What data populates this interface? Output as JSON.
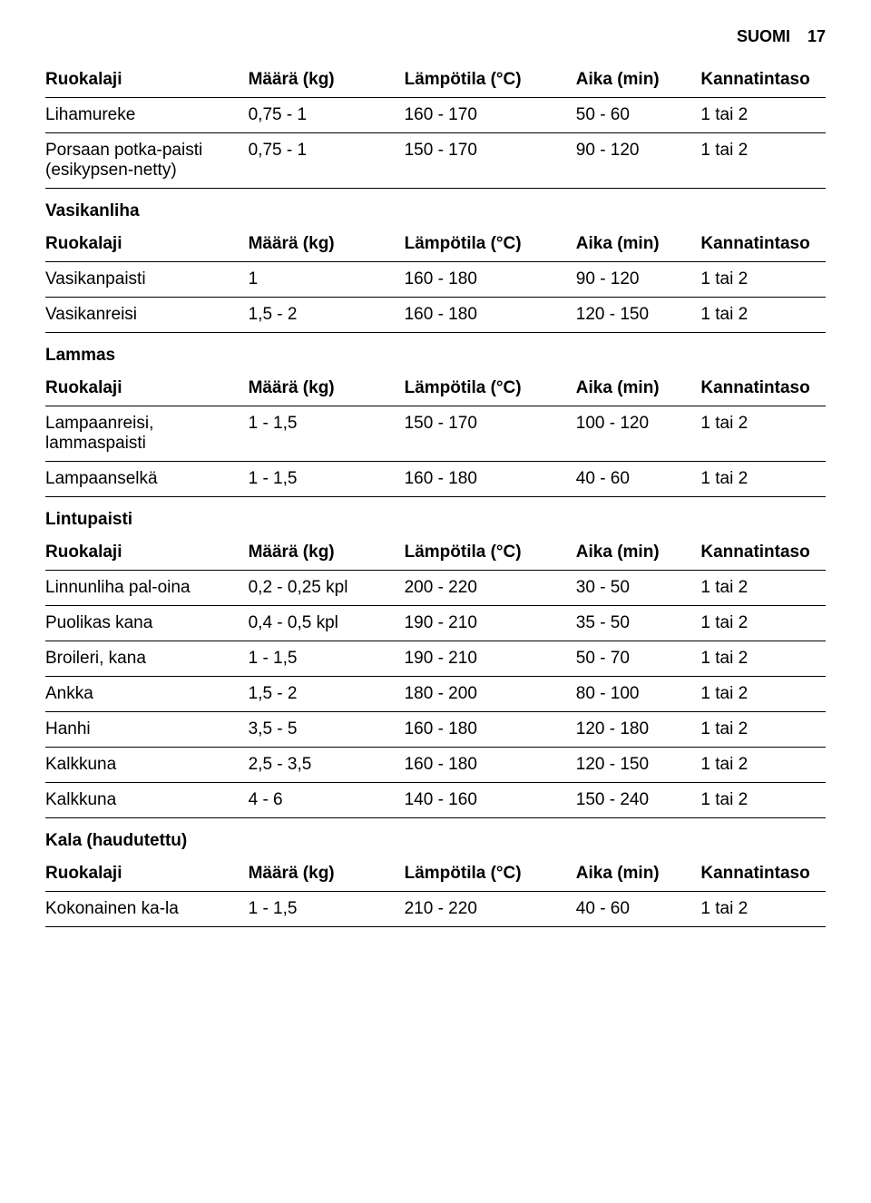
{
  "header": {
    "lang": "SUOMI",
    "page": "17"
  },
  "columns": {
    "ruokalaji": "Ruokalaji",
    "maara": "Määrä (kg)",
    "lampotila_br": "Lämpötila (°C)",
    "lampotila": "Lämpötila (°C)",
    "aika": "Aika (min)",
    "kannatintaso": "Kannatintaso"
  },
  "sections": {
    "top": {
      "rows": [
        {
          "ruokalaji": "Lihamureke",
          "maara": "0,75 - 1",
          "lampotila": "160 - 170",
          "aika": "50 - 60",
          "kannatintaso": "1 tai 2"
        },
        {
          "ruokalaji": "Porsaan potka-paisti (esikypsen-netty)",
          "maara": "0,75 - 1",
          "lampotila": "150 - 170",
          "aika": "90 - 120",
          "kannatintaso": "1 tai 2"
        }
      ]
    },
    "vasikanliha": {
      "title": "Vasikanliha",
      "rows": [
        {
          "ruokalaji": "Vasikanpaisti",
          "maara": "1",
          "lampotila": "160 - 180",
          "aika": "90 - 120",
          "kannatintaso": "1 tai 2"
        },
        {
          "ruokalaji": "Vasikanreisi",
          "maara": "1,5 - 2",
          "lampotila": "160 - 180",
          "aika": "120 - 150",
          "kannatintaso": "1 tai 2"
        }
      ]
    },
    "lammas": {
      "title": "Lammas",
      "rows": [
        {
          "ruokalaji": "Lampaanreisi, lammaspaisti",
          "maara": "1 - 1,5",
          "lampotila": "150 - 170",
          "aika": "100 - 120",
          "kannatintaso": "1 tai 2"
        },
        {
          "ruokalaji": "Lampaanselkä",
          "maara": "1 - 1,5",
          "lampotila": "160 - 180",
          "aika": "40 - 60",
          "kannatintaso": "1 tai 2"
        }
      ]
    },
    "lintupaisti": {
      "title": "Lintupaisti",
      "rows": [
        {
          "ruokalaji": "Linnunliha pal-oina",
          "maara": "0,2 - 0,25 kpl",
          "lampotila": "200 - 220",
          "aika": "30 - 50",
          "kannatintaso": "1 tai 2"
        },
        {
          "ruokalaji": "Puolikas kana",
          "maara": "0,4 - 0,5 kpl",
          "lampotila": "190 - 210",
          "aika": "35 - 50",
          "kannatintaso": "1 tai 2"
        },
        {
          "ruokalaji": "Broileri, kana",
          "maara": "1 - 1,5",
          "lampotila": "190 - 210",
          "aika": "50 - 70",
          "kannatintaso": "1 tai 2"
        },
        {
          "ruokalaji": "Ankka",
          "maara": "1,5 - 2",
          "lampotila": "180 - 200",
          "aika": "80 - 100",
          "kannatintaso": "1 tai 2"
        },
        {
          "ruokalaji": "Hanhi",
          "maara": "3,5 - 5",
          "lampotila": "160 - 180",
          "aika": "120 - 180",
          "kannatintaso": "1 tai 2"
        },
        {
          "ruokalaji": "Kalkkuna",
          "maara": "2,5 - 3,5",
          "lampotila": "160 - 180",
          "aika": "120 - 150",
          "kannatintaso": "1 tai 2"
        },
        {
          "ruokalaji": "Kalkkuna",
          "maara": "4 - 6",
          "lampotila": "140 - 160",
          "aika": "150 - 240",
          "kannatintaso": "1 tai 2"
        }
      ]
    },
    "kala": {
      "title": "Kala (haudutettu)",
      "rows": [
        {
          "ruokalaji": "Kokonainen ka-la",
          "maara": "1 - 1,5",
          "lampotila": "210 - 220",
          "aika": "40 - 60",
          "kannatintaso": "1 tai 2"
        }
      ]
    }
  }
}
